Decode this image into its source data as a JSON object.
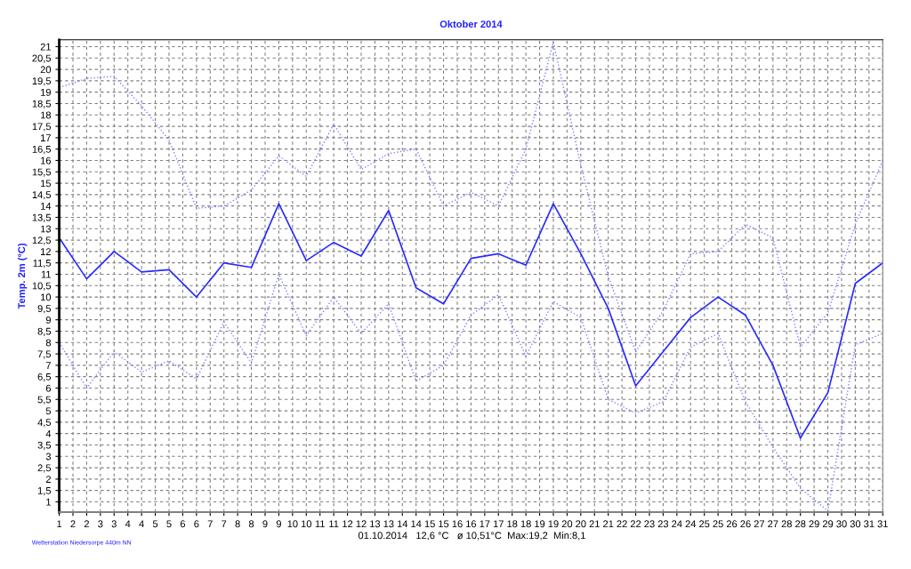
{
  "chart_data": {
    "type": "line",
    "title": "Oktober 2014",
    "ylabel": "Temp. 2m (°C)",
    "x": [
      1,
      2,
      3,
      4,
      5,
      6,
      7,
      8,
      9,
      10,
      11,
      12,
      13,
      14,
      15,
      16,
      17,
      18,
      19,
      20,
      21,
      22,
      23,
      24,
      25,
      26,
      27,
      28,
      29,
      30,
      31
    ],
    "series": [
      {
        "color": "#8080ff",
        "line_style": "dotted",
        "values": [
          19.2,
          19.6,
          19.7,
          18.4,
          16.9,
          13.9,
          14.0,
          14.7,
          16.2,
          15.3,
          17.6,
          15.6,
          16.3,
          16.5,
          14.0,
          14.6,
          14.0,
          16.5,
          21.2,
          15.8,
          10.9,
          7.6,
          9.4,
          11.9,
          12.0,
          13.2,
          12.6,
          7.8,
          9.3,
          13.2,
          16.0
        ]
      },
      {
        "color": "#2a2aff",
        "line_style": "solid",
        "values": [
          12.6,
          10.8,
          12.0,
          11.1,
          11.2,
          10.0,
          11.5,
          11.3,
          14.1,
          11.6,
          12.4,
          11.8,
          13.8,
          10.4,
          9.7,
          11.7,
          11.9,
          11.4,
          14.1,
          11.9,
          9.5,
          6.1,
          7.6,
          9.1,
          10.0,
          9.2,
          7.0,
          3.8,
          5.8,
          10.6,
          11.5
        ]
      },
      {
        "color": "#8080ff",
        "line_style": "dotted",
        "values": [
          8.0,
          6.0,
          7.6,
          6.7,
          7.2,
          6.4,
          8.9,
          7.1,
          11.0,
          8.3,
          10.0,
          8.4,
          9.7,
          6.3,
          7.0,
          9.2,
          10.1,
          7.4,
          9.8,
          9.1,
          5.5,
          4.9,
          5.4,
          7.8,
          8.4,
          5.4,
          3.4,
          1.6,
          0.6,
          7.9,
          8.4
        ]
      }
    ],
    "xlim": [
      1,
      31
    ],
    "ylim": [
      0.55,
      21.3
    ],
    "xticks": [
      {
        "value": 1,
        "label": "1"
      },
      {
        "value": 1.5,
        "label": "2"
      },
      {
        "value": 2,
        "label": "2"
      },
      {
        "value": 2.5,
        "label": "3"
      },
      {
        "value": 3,
        "label": "3"
      },
      {
        "value": 3.5,
        "label": "4"
      },
      {
        "value": 4,
        "label": "4"
      },
      {
        "value": 4.5,
        "label": "5"
      },
      {
        "value": 5,
        "label": "5"
      },
      {
        "value": 5.5,
        "label": "6"
      },
      {
        "value": 6,
        "label": "6"
      },
      {
        "value": 6.5,
        "label": "7"
      },
      {
        "value": 7,
        "label": "7"
      },
      {
        "value": 7.5,
        "label": "8"
      },
      {
        "value": 8,
        "label": "8"
      },
      {
        "value": 8.5,
        "label": "9"
      },
      {
        "value": 9,
        "label": "9"
      },
      {
        "value": 9.5,
        "label": "10"
      },
      {
        "value": 10,
        "label": "10"
      },
      {
        "value": 10.5,
        "label": "11"
      },
      {
        "value": 11,
        "label": "11"
      },
      {
        "value": 11.5,
        "label": "12"
      },
      {
        "value": 12,
        "label": "12"
      },
      {
        "value": 12.5,
        "label": "13"
      },
      {
        "value": 13,
        "label": "13"
      },
      {
        "value": 13.5,
        "label": "14"
      },
      {
        "value": 14,
        "label": "14"
      },
      {
        "value": 14.5,
        "label": "15"
      },
      {
        "value": 15,
        "label": "15"
      },
      {
        "value": 15.5,
        "label": "16"
      },
      {
        "value": 16,
        "label": "16"
      },
      {
        "value": 16.5,
        "label": "17"
      },
      {
        "value": 17,
        "label": "17"
      },
      {
        "value": 17.5,
        "label": "18"
      },
      {
        "value": 18,
        "label": "18"
      },
      {
        "value": 18.5,
        "label": "19"
      },
      {
        "value": 19,
        "label": "19"
      },
      {
        "value": 19.5,
        "label": "20"
      },
      {
        "value": 20,
        "label": "20"
      },
      {
        "value": 20.5,
        "label": "21"
      },
      {
        "value": 21,
        "label": "21"
      },
      {
        "value": 21.5,
        "label": "22"
      },
      {
        "value": 22,
        "label": "22"
      },
      {
        "value": 22.5,
        "label": "23"
      },
      {
        "value": 23,
        "label": "23"
      },
      {
        "value": 23.5,
        "label": "24"
      },
      {
        "value": 24,
        "label": "24"
      },
      {
        "value": 24.5,
        "label": "25"
      },
      {
        "value": 25,
        "label": "25"
      },
      {
        "value": 25.5,
        "label": "26"
      },
      {
        "value": 26,
        "label": "26"
      },
      {
        "value": 26.5,
        "label": "27"
      },
      {
        "value": 27,
        "label": "27"
      },
      {
        "value": 27.5,
        "label": "28"
      },
      {
        "value": 28,
        "label": "28"
      },
      {
        "value": 28.5,
        "label": "29"
      },
      {
        "value": 29,
        "label": "29"
      },
      {
        "value": 29.5,
        "label": "30"
      },
      {
        "value": 30,
        "label": "30"
      },
      {
        "value": 30.5,
        "label": "31"
      },
      {
        "value": 31,
        "label": "31"
      }
    ],
    "yticks": [
      1,
      {
        "value": 1.5,
        "label": "1,5"
      },
      2,
      {
        "value": 2.5,
        "label": "2,5"
      },
      3,
      {
        "value": 3.5,
        "label": "3,5"
      },
      4,
      {
        "value": 4.5,
        "label": "4,5"
      },
      5,
      {
        "value": 5.5,
        "label": "5,5"
      },
      6,
      {
        "value": 6.5,
        "label": "6,5"
      },
      7,
      {
        "value": 7.5,
        "label": "7,5"
      },
      8,
      {
        "value": 8.5,
        "label": "8,5"
      },
      9,
      {
        "value": 9.5,
        "label": "9,5"
      },
      10,
      {
        "value": 10.5,
        "label": "10,5"
      },
      11,
      {
        "value": 11.5,
        "label": "11,5"
      },
      12,
      {
        "value": 12.5,
        "label": "12,5"
      },
      13,
      {
        "value": 13.5,
        "label": "13,5"
      },
      14,
      {
        "value": 14.5,
        "label": "14,5"
      },
      15,
      {
        "value": 15.5,
        "label": "15,5"
      },
      16,
      {
        "value": 16.5,
        "label": "16,5"
      },
      17,
      {
        "value": 17.5,
        "label": "17,5"
      },
      18,
      {
        "value": 18.5,
        "label": "18,5"
      },
      19,
      {
        "value": 19.5,
        "label": "19,5"
      },
      20,
      {
        "value": 20.5,
        "label": "20,5"
      },
      21
    ],
    "grid": true,
    "legend": false,
    "marker": "none",
    "annotations": [
      "01.10.2014   12,6 °C   ø 10,51°C  Max:19,2  Min:8,1",
      "Wetterstation Niedersorpe 440m NN"
    ]
  }
}
